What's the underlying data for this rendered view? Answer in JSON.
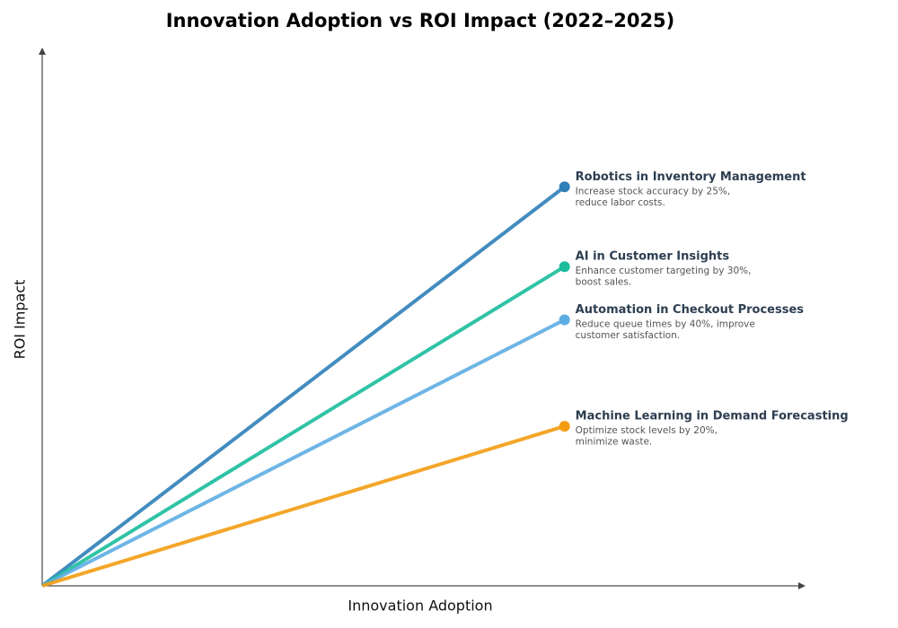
{
  "chart_data": {
    "type": "line",
    "title": "Innovation Adoption vs ROI Impact (2022–2025)",
    "x_label": "Innovation Adoption",
    "y_label": "ROI Impact",
    "xlim": [
      0,
      1
    ],
    "ylim": [
      0,
      1
    ],
    "series": [
      {
        "name": "Robotics in Inventory Management",
        "color": "#2e7fb8",
        "x": [
          0,
          0.69
        ],
        "values": [
          0,
          0.75
        ],
        "description": [
          "Increase stock accuracy by 25%,",
          "reduce labor costs."
        ]
      },
      {
        "name": "AI in Customer Insights",
        "color": "#1abc9c",
        "x": [
          0,
          0.69
        ],
        "values": [
          0,
          0.6
        ],
        "description": [
          "Enhance customer targeting by 30%,",
          "boost sales."
        ]
      },
      {
        "name": "Automation in Checkout Processes",
        "color": "#5dade2",
        "x": [
          0,
          0.69
        ],
        "values": [
          0,
          0.5
        ],
        "description": [
          "Reduce queue times by 40%, improve",
          "customer satisfaction."
        ]
      },
      {
        "name": "Machine Learning in Demand Forecasting",
        "color": "#f39c12",
        "x": [
          0,
          0.69
        ],
        "values": [
          0,
          0.3
        ],
        "description": [
          "Optimize stock levels by 20%,",
          "minimize waste."
        ]
      }
    ]
  }
}
